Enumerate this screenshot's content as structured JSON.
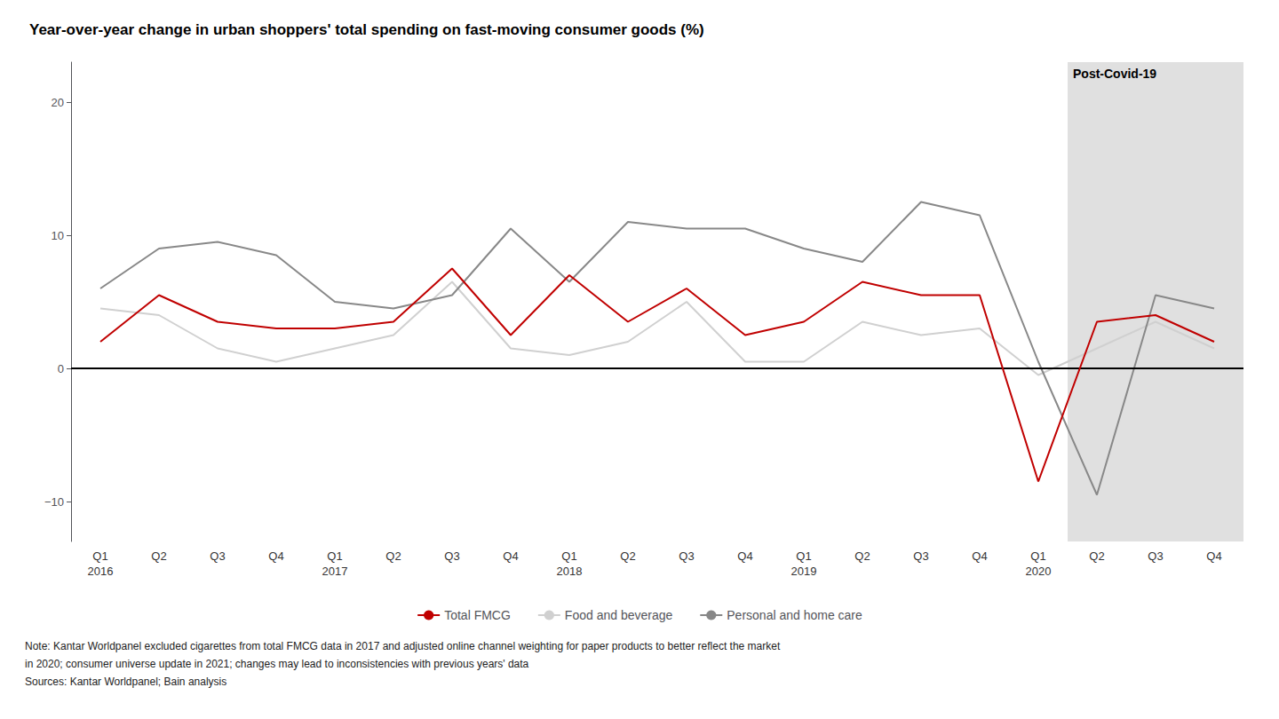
{
  "chart_data": {
    "type": "line",
    "title": "Year-over-year change in urban shoppers' total spending on fast-moving consumer goods (%)",
    "categories": [
      "Q1\n2016",
      "Q2",
      "Q3",
      "Q4",
      "Q1\n2017",
      "Q2",
      "Q3",
      "Q4",
      "Q1\n2018",
      "Q2",
      "Q3",
      "Q4",
      "Q1\n2019",
      "Q2",
      "Q3",
      "Q4",
      "Q1\n2020",
      "Q2",
      "Q3",
      "Q4"
    ],
    "series": [
      {
        "name": "Total FMCG",
        "color": "#c00000",
        "values": [
          2.0,
          5.5,
          3.5,
          3.0,
          3.0,
          3.5,
          7.5,
          2.5,
          7.0,
          3.5,
          6.0,
          2.5,
          3.5,
          6.5,
          5.5,
          5.5,
          -8.5,
          3.5,
          4.0,
          2.0
        ]
      },
      {
        "name": "Food and beverage",
        "color": "#d0d0d0",
        "values": [
          4.5,
          4.0,
          1.5,
          0.5,
          1.5,
          2.5,
          6.5,
          1.5,
          1.0,
          2.0,
          5.0,
          0.5,
          0.5,
          3.5,
          2.5,
          3.0,
          -0.5,
          1.5,
          3.5,
          1.5
        ]
      },
      {
        "name": "Personal and home care",
        "color": "#888888",
        "values": [
          6.0,
          9.0,
          9.5,
          8.5,
          5.0,
          4.5,
          5.5,
          10.5,
          6.5,
          11.0,
          10.5,
          10.5,
          9.0,
          8.0,
          12.5,
          11.5,
          0.5,
          -9.5,
          5.5,
          4.5
        ]
      }
    ],
    "ylim": [
      -13,
      23
    ],
    "yticks": [
      {
        "value": -10,
        "label": "−10"
      },
      0,
      10,
      20
    ],
    "grid": false,
    "legend": "bottom",
    "reference_lines": [
      0
    ],
    "shaded_region": {
      "label": "Post-Covid-19",
      "start": 17,
      "color": "#e0e0e0"
    },
    "notes": [
      "Note: Kantar Worldpanel excluded cigarettes from total FMCG data in 2017 and adjusted online channel weighting for paper products to better reflect the market",
      "in 2020; consumer universe update in 2021; changes may lead to inconsistencies with previous years' data",
      "Sources: Kantar Worldpanel; Bain analysis"
    ]
  }
}
